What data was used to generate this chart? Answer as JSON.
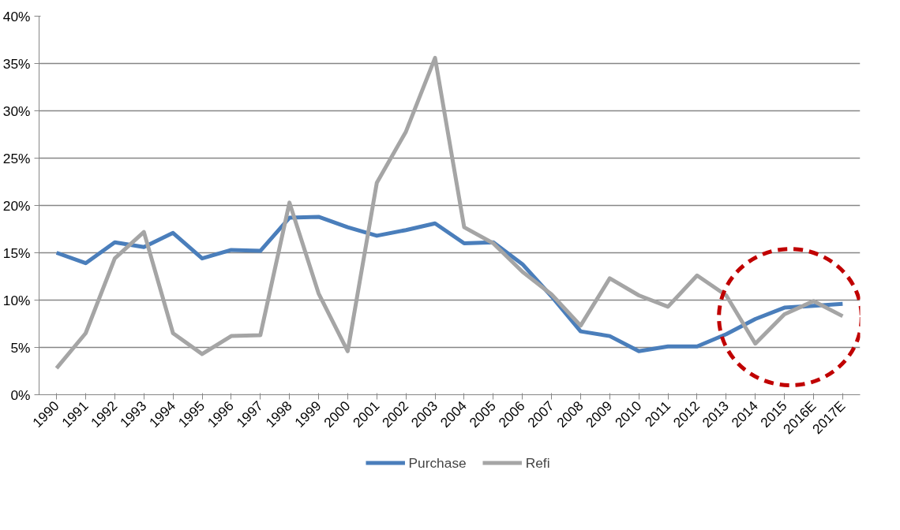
{
  "chart_data": {
    "type": "line",
    "categories": [
      "1990",
      "1991",
      "1992",
      "1993",
      "1994",
      "1995",
      "1996",
      "1997",
      "1998",
      "1999",
      "2000",
      "2001",
      "2002",
      "2003",
      "2004",
      "2005",
      "2006",
      "2007",
      "2008",
      "2009",
      "2010",
      "2011",
      "2012",
      "2013",
      "2014",
      "2015",
      "2016E",
      "2017E"
    ],
    "series": [
      {
        "name": "Purchase",
        "color": "#4a7ebb",
        "values": [
          15.0,
          13.9,
          16.1,
          15.6,
          17.1,
          14.4,
          15.3,
          15.2,
          18.7,
          18.8,
          17.7,
          16.8,
          17.4,
          18.1,
          16.0,
          16.1,
          13.8,
          10.4,
          6.7,
          6.2,
          4.6,
          5.1,
          5.1,
          6.4,
          8.0,
          9.2,
          9.4,
          9.6
        ]
      },
      {
        "name": "Refi",
        "color": "#a5a5a5",
        "values": [
          2.8,
          6.5,
          14.4,
          17.2,
          6.5,
          4.3,
          6.2,
          6.3,
          20.3,
          10.7,
          4.6,
          22.4,
          27.8,
          35.6,
          17.7,
          16.0,
          13.0,
          10.6,
          7.3,
          12.3,
          10.5,
          9.3,
          12.6,
          10.5,
          5.4,
          8.5,
          9.9,
          8.3
        ]
      }
    ],
    "ylim": [
      0,
      40
    ],
    "yticks": [
      {
        "value": 0,
        "label": "0%"
      },
      {
        "value": 5,
        "label": "5%"
      },
      {
        "value": 10,
        "label": "10%"
      },
      {
        "value": 15,
        "label": "15%"
      },
      {
        "value": 20,
        "label": "20%"
      },
      {
        "value": 25,
        "label": "25%"
      },
      {
        "value": 30,
        "label": "30%"
      },
      {
        "value": 35,
        "label": "35%"
      },
      {
        "value": 40,
        "label": "40%"
      }
    ],
    "grid": "y",
    "legend": "bottom",
    "marker": "none",
    "line_style": "solid"
  }
}
